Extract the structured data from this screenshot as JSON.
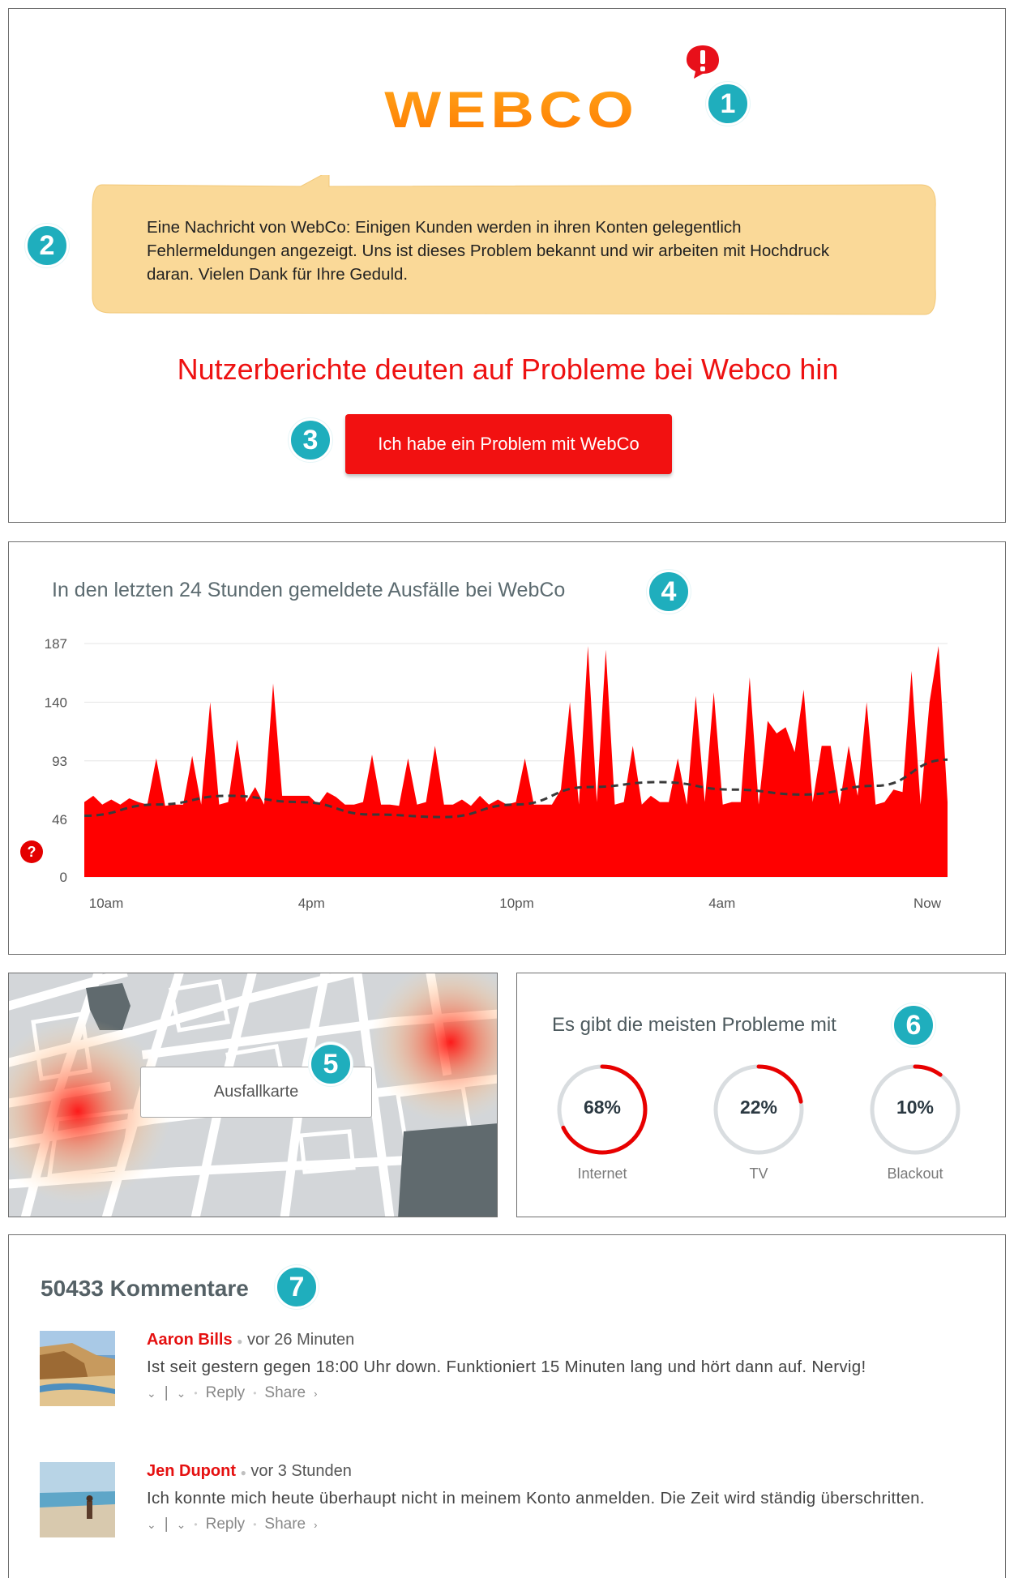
{
  "header": {
    "logo_text": "WEBCO",
    "badge": "1",
    "alert_glyph": "!"
  },
  "message": {
    "badge": "2",
    "text": "Eine Nachricht von WebCo: Einigen Kunden werden in ihren Konten gelegentlich Fehlermeldungen angezeigt. Uns ist dieses Problem bekannt und wir arbeiten mit Hochdruck daran. Vielen Dank für Ihre Geduld."
  },
  "status": {
    "headline": "Nutzerberichte deuten auf Probleme bei Webco hin",
    "button_label": "Ich habe ein Problem mit WebCo",
    "badge": "3"
  },
  "outage_chart": {
    "badge": "4",
    "help_glyph": "?",
    "colors": {
      "area": "#ff0000",
      "baseline": "#3a3a3a",
      "grid": "#e6e6e6"
    }
  },
  "chart_data": {
    "type": "area",
    "title": "In den letzten 24 Stunden gemeldete Ausfälle bei WebCo",
    "y_ticks": [
      0,
      46,
      93,
      140,
      187
    ],
    "ylim": [
      0,
      187
    ],
    "x_tick_labels": [
      "10am",
      "4pm",
      "10pm",
      "4am",
      "Now"
    ],
    "x_range_hours": [
      0,
      24
    ],
    "series": [
      {
        "name": "",
        "x": [
          0,
          0.25,
          0.5,
          0.75,
          1,
          1.25,
          1.5,
          1.75,
          2,
          2.25,
          2.5,
          2.75,
          3,
          3.25,
          3.5,
          3.75,
          4,
          4.25,
          4.5,
          4.75,
          5,
          5.25,
          5.5,
          5.75,
          6,
          6.25,
          6.5,
          6.75,
          7,
          7.25,
          7.5,
          7.75,
          8,
          8.25,
          8.5,
          8.75,
          9,
          9.25,
          9.5,
          9.75,
          10,
          10.25,
          10.5,
          10.75,
          11,
          11.25,
          11.5,
          11.75,
          12,
          12.25,
          12.5,
          12.75,
          13,
          13.25,
          13.5,
          13.75,
          14,
          14.25,
          14.5,
          14.75,
          15,
          15.25,
          15.5,
          15.75,
          16,
          16.25,
          16.5,
          16.75,
          17,
          17.25,
          17.5,
          17.75,
          18,
          18.25,
          18.5,
          18.75,
          19,
          19.25,
          19.5,
          19.75,
          20,
          20.25,
          20.5,
          20.75,
          21,
          21.25,
          21.5,
          21.75,
          22,
          22.25,
          22.5,
          22.75,
          23,
          23.25,
          23.5,
          23.75,
          24
        ],
        "values": [
          60,
          65,
          58,
          62,
          58,
          63,
          60,
          58,
          95,
          57,
          58,
          58,
          97,
          58,
          140,
          58,
          60,
          110,
          60,
          72,
          58,
          155,
          65,
          65,
          65,
          65,
          58,
          68,
          64,
          58,
          58,
          60,
          98,
          58,
          58,
          57,
          95,
          58,
          60,
          105,
          58,
          58,
          62,
          57,
          65,
          58,
          62,
          58,
          60,
          95,
          58,
          58,
          58,
          70,
          140,
          58,
          185,
          60,
          182,
          58,
          60,
          105,
          58,
          65,
          60,
          60,
          95,
          58,
          145,
          60,
          148,
          58,
          60,
          60,
          160,
          58,
          125,
          115,
          120,
          100,
          150,
          60,
          105,
          105,
          58,
          105,
          65,
          140,
          58,
          60,
          70,
          68,
          165,
          58,
          140,
          185,
          60
        ]
      },
      {
        "name": "",
        "style": "dashed-baseline",
        "x": [
          0,
          2,
          4,
          6,
          8,
          10,
          12,
          14,
          16,
          18,
          20,
          22,
          24
        ],
        "values": [
          49,
          58,
          65,
          60,
          50,
          48,
          58,
          72,
          76,
          70,
          66,
          73,
          94
        ]
      }
    ]
  },
  "map": {
    "badge": "5",
    "button_label": "Ausfallkarte",
    "hotspot_color": "#ff2020"
  },
  "categories": {
    "badge": "6",
    "title": "Es gibt die meisten Probleme mit",
    "items": [
      {
        "label": "Internet",
        "percent_text": "68%",
        "fraction": 0.68
      },
      {
        "label": "TV",
        "percent_text": "22%",
        "fraction": 0.22
      },
      {
        "label": "Blackout",
        "percent_text": "10%",
        "fraction": 0.1
      }
    ],
    "ring_color": "#e80000",
    "track_color": "#d9dde0"
  },
  "comments": {
    "badge": "7",
    "title": "50433 Kommentare",
    "items": [
      {
        "author": "Aaron Bills",
        "time": "vor 26 Minuten",
        "text": "Ist seit gestern gegen 18:00 Uhr down. Funktioniert 15 Minuten lang und hört dann auf. Nervig!",
        "reply_label": "Reply",
        "share_label": "Share",
        "avatar_icon": "beach-photo"
      },
      {
        "author": "Jen Dupont",
        "time": "vor 3 Stunden",
        "text": "Ich konnte mich heute überhaupt nicht in meinem Konto anmelden. Die Zeit wird ständig überschritten.",
        "reply_label": "Reply",
        "share_label": "Share",
        "avatar_icon": "beach-person-photo"
      }
    ]
  }
}
